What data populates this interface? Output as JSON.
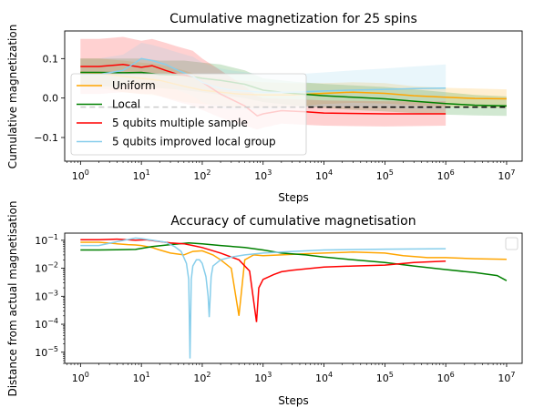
{
  "chart_data": [
    {
      "type": "line",
      "title": "Cumulative magnetization for 25 spins",
      "xlabel": "Steps",
      "ylabel": "Cumulative magnetization",
      "xscale": "log",
      "xlim": [
        0.55,
        18000000
      ],
      "ylim": [
        -0.16,
        0.17
      ],
      "xticks": [
        {
          "value": 1,
          "base": "10",
          "exp": "0"
        },
        {
          "value": 10,
          "base": "10",
          "exp": "1"
        },
        {
          "value": 100,
          "base": "10",
          "exp": "2"
        },
        {
          "value": 1000,
          "base": "10",
          "exp": "3"
        },
        {
          "value": 10000,
          "base": "10",
          "exp": "4"
        },
        {
          "value": 100000,
          "base": "10",
          "exp": "5"
        },
        {
          "value": 1000000,
          "base": "10",
          "exp": "6"
        },
        {
          "value": 10000000,
          "base": "10",
          "exp": "7"
        }
      ],
      "yticks": [
        {
          "value": 0.1,
          "label": "0.1"
        },
        {
          "value": 0.0,
          "label": "0.0"
        },
        {
          "value": -0.1,
          "label": "−0.1"
        }
      ],
      "legend_position": "lower-left",
      "reference_line": {
        "y": -0.023,
        "style": "dashed",
        "color": "#000000"
      },
      "series": [
        {
          "name": "Uniform",
          "color": "#ffa500",
          "x": [
            1,
            2,
            5,
            10,
            20,
            50,
            100,
            200,
            400,
            1000,
            3000,
            10000,
            30000,
            100000,
            300000,
            1000000,
            3000000,
            10000000
          ],
          "y": [
            0.065,
            0.063,
            0.055,
            0.05,
            0.045,
            0.03,
            0.02,
            0.015,
            0.01,
            0.008,
            0.008,
            0.012,
            0.015,
            0.012,
            0.006,
            0.002,
            -0.001,
            -0.002
          ],
          "lower": [
            0.03,
            0.025,
            0.015,
            0.01,
            0.005,
            -0.01,
            -0.015,
            -0.02,
            -0.025,
            -0.025,
            -0.022,
            -0.015,
            -0.012,
            -0.014,
            -0.018,
            -0.022,
            -0.024,
            -0.025
          ],
          "upper": [
            0.1,
            0.1,
            0.095,
            0.09,
            0.085,
            0.07,
            0.055,
            0.05,
            0.045,
            0.04,
            0.038,
            0.038,
            0.04,
            0.038,
            0.03,
            0.026,
            0.024,
            0.022
          ]
        },
        {
          "name": "Local",
          "color": "#008000",
          "x": [
            1,
            2,
            5,
            10,
            20,
            50,
            100,
            200,
            500,
            1000,
            3000,
            10000,
            30000,
            100000,
            300000,
            1000000,
            3000000,
            10000000
          ],
          "y": [
            0.065,
            0.065,
            0.064,
            0.065,
            0.06,
            0.058,
            0.05,
            0.045,
            0.035,
            0.02,
            0.012,
            0.006,
            0.002,
            -0.002,
            -0.008,
            -0.014,
            -0.018,
            -0.02
          ],
          "lower": [
            0.03,
            0.03,
            0.03,
            0.03,
            0.025,
            0.02,
            0.015,
            0.008,
            0.0,
            -0.01,
            -0.018,
            -0.025,
            -0.03,
            -0.034,
            -0.038,
            -0.042,
            -0.044,
            -0.045
          ],
          "upper": [
            0.1,
            0.1,
            0.1,
            0.1,
            0.095,
            0.095,
            0.09,
            0.085,
            0.07,
            0.05,
            0.042,
            0.036,
            0.032,
            0.028,
            0.022,
            0.015,
            0.008,
            0.004
          ]
        },
        {
          "name": "5 qubits multiple sample",
          "color": "#ff0000",
          "x": [
            1,
            2,
            5,
            10,
            15,
            25,
            40,
            70,
            100,
            200,
            500,
            800,
            1000,
            2000,
            5000,
            10000,
            100000,
            1000000
          ],
          "y": [
            0.08,
            0.08,
            0.085,
            0.078,
            0.082,
            0.07,
            0.06,
            0.055,
            0.04,
            0.01,
            -0.02,
            -0.045,
            -0.04,
            -0.032,
            -0.035,
            -0.038,
            -0.04,
            -0.04
          ],
          "lower": [
            0.01,
            0.01,
            0.015,
            0.01,
            0.01,
            0.0,
            -0.01,
            -0.02,
            -0.03,
            -0.05,
            -0.07,
            -0.08,
            -0.075,
            -0.065,
            -0.068,
            -0.07,
            -0.072,
            -0.07
          ],
          "upper": [
            0.15,
            0.15,
            0.155,
            0.145,
            0.15,
            0.14,
            0.13,
            0.12,
            0.1,
            0.07,
            0.03,
            0.005,
            0.0,
            -0.002,
            -0.004,
            -0.006,
            -0.008,
            -0.008
          ]
        },
        {
          "name": "5 qubits improved local group",
          "color": "#87ceeb",
          "x": [
            1,
            2,
            5,
            8,
            10,
            15,
            25,
            40,
            70,
            100,
            150,
            200,
            300,
            1000,
            3000,
            10000,
            30000,
            100000,
            300000,
            1000000
          ],
          "y": [
            0.06,
            0.06,
            0.07,
            0.09,
            0.1,
            0.095,
            0.085,
            0.07,
            0.055,
            0.04,
            0.03,
            0.025,
            0.02,
            0.015,
            0.015,
            0.018,
            0.02,
            0.022,
            0.024,
            0.025
          ],
          "lower": [
            0.02,
            0.02,
            0.03,
            0.05,
            0.06,
            0.055,
            0.04,
            0.02,
            0.005,
            -0.01,
            -0.02,
            -0.025,
            -0.03,
            -0.03,
            -0.025,
            -0.022,
            -0.022,
            -0.025,
            -0.028,
            -0.03
          ],
          "upper": [
            0.1,
            0.1,
            0.11,
            0.13,
            0.14,
            0.135,
            0.125,
            0.115,
            0.105,
            0.09,
            0.08,
            0.075,
            0.07,
            0.06,
            0.06,
            0.065,
            0.07,
            0.075,
            0.08,
            0.085
          ]
        }
      ]
    },
    {
      "type": "line",
      "title": "Accuracy of cumulative magnetisation",
      "xlabel": "Steps",
      "ylabel": "Distance from actual magnetisation",
      "xscale": "log",
      "yscale": "log",
      "xlim": [
        0.55,
        18000000
      ],
      "ylim": [
        4e-06,
        0.18
      ],
      "xticks": [
        {
          "value": 1,
          "base": "10",
          "exp": "0"
        },
        {
          "value": 10,
          "base": "10",
          "exp": "1"
        },
        {
          "value": 100,
          "base": "10",
          "exp": "2"
        },
        {
          "value": 1000,
          "base": "10",
          "exp": "3"
        },
        {
          "value": 10000,
          "base": "10",
          "exp": "4"
        },
        {
          "value": 100000,
          "base": "10",
          "exp": "5"
        },
        {
          "value": 1000000,
          "base": "10",
          "exp": "6"
        },
        {
          "value": 10000000,
          "base": "10",
          "exp": "7"
        }
      ],
      "yticks": [
        {
          "value": 0.1,
          "base": "10",
          "exp": "−1"
        },
        {
          "value": 0.01,
          "base": "10",
          "exp": "−2"
        },
        {
          "value": 0.001,
          "base": "10",
          "exp": "−3"
        },
        {
          "value": 0.0001,
          "base": "10",
          "exp": "−4"
        },
        {
          "value": 1e-05,
          "base": "10",
          "exp": "−5"
        }
      ],
      "legend_position": "upper-right",
      "legend_entries": [],
      "series": [
        {
          "color": "#ffa500",
          "x": [
            1,
            2,
            4,
            6,
            8,
            10,
            15,
            20,
            30,
            50,
            70,
            100,
            150,
            200,
            300,
            400,
            500,
            700,
            1000,
            2000,
            5000,
            10000,
            30000,
            100000,
            200000,
            500000,
            1000000,
            3000000,
            10000000
          ],
          "y": [
            0.085,
            0.085,
            0.075,
            0.07,
            0.068,
            0.065,
            0.055,
            0.045,
            0.035,
            0.03,
            0.04,
            0.042,
            0.03,
            0.02,
            0.01,
            0.0002,
            0.02,
            0.03,
            0.028,
            0.03,
            0.033,
            0.035,
            0.038,
            0.035,
            0.028,
            0.024,
            0.024,
            0.022,
            0.021
          ]
        },
        {
          "color": "#008000",
          "x": [
            1,
            2,
            4,
            8,
            15,
            30,
            60,
            100,
            200,
            500,
            1000,
            2000,
            5000,
            10000,
            30000,
            100000,
            300000,
            1000000,
            3000000,
            7000000,
            10000000
          ],
          "y": [
            0.045,
            0.045,
            0.046,
            0.047,
            0.06,
            0.07,
            0.08,
            0.075,
            0.065,
            0.055,
            0.045,
            0.035,
            0.03,
            0.025,
            0.02,
            0.016,
            0.012,
            0.009,
            0.007,
            0.0055,
            0.0036
          ]
        },
        {
          "color": "#ff0000",
          "x": [
            1,
            2,
            4,
            8,
            12,
            20,
            30,
            50,
            70,
            100,
            200,
            400,
            600,
            780,
            850,
            1000,
            1500,
            2000,
            3000,
            5000,
            10000,
            30000,
            100000,
            300000,
            1000000
          ],
          "y": [
            0.105,
            0.105,
            0.11,
            0.1,
            0.105,
            0.09,
            0.08,
            0.075,
            0.065,
            0.055,
            0.035,
            0.02,
            0.008,
            0.00012,
            0.002,
            0.004,
            0.006,
            0.0075,
            0.0085,
            0.0095,
            0.011,
            0.012,
            0.013,
            0.016,
            0.018
          ]
        },
        {
          "color": "#87ceeb",
          "x": [
            1,
            2,
            4,
            8,
            10,
            15,
            25,
            35,
            45,
            55,
            60,
            63,
            66,
            70,
            80,
            90,
            100,
            115,
            125,
            130,
            135,
            140,
            150,
            200,
            300,
            500,
            1000,
            3000,
            10000,
            100000,
            1000000
          ],
          "y": [
            0.065,
            0.065,
            0.09,
            0.12,
            0.115,
            0.1,
            0.085,
            0.06,
            0.04,
            0.015,
            0.004,
            6e-06,
            0.004,
            0.012,
            0.02,
            0.02,
            0.015,
            0.005,
            0.001,
            0.00018,
            0.001,
            0.005,
            0.012,
            0.02,
            0.025,
            0.03,
            0.035,
            0.04,
            0.045,
            0.048,
            0.05
          ]
        }
      ]
    }
  ]
}
